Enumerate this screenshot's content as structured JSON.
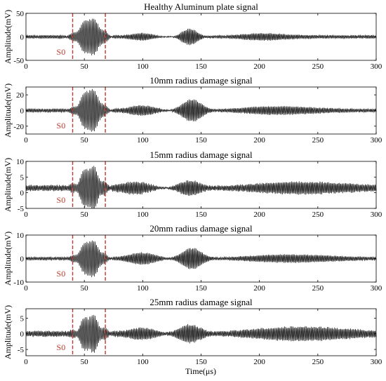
{
  "figure": {
    "xlabel": "Time(μs)"
  },
  "chart_data": [
    {
      "type": "line",
      "title": "Healthy Aluminum plate signal",
      "xlabel": "Time(μs)",
      "ylabel": "Amplitude(mV)",
      "xlim": [
        0,
        300
      ],
      "ylim": [
        -50,
        50
      ],
      "xticks": [
        0,
        50,
        100,
        150,
        200,
        250,
        300
      ],
      "yticks": [
        -50,
        0,
        50
      ],
      "markers": [
        40,
        68
      ],
      "marker_label": "S0",
      "marker_color": "#c0392b",
      "series": [
        {
          "noise": 3,
          "packets": [
            {
              "center": 55,
              "width": 11,
              "amp": 40,
              "freq": 0.16
            },
            {
              "center": 100,
              "width": 16,
              "amp": 10,
              "freq": 0.18
            },
            {
              "center": 140,
              "width": 10,
              "amp": 20,
              "freq": 0.18
            },
            {
              "center": 200,
              "width": 25,
              "amp": 6,
              "freq": 0.18
            }
          ]
        }
      ]
    },
    {
      "type": "line",
      "title": "10mm radius damage signal",
      "xlabel": "",
      "ylabel": "Amplitude(mV)",
      "xlim": [
        0,
        300
      ],
      "ylim": [
        -30,
        30
      ],
      "xticks": [
        0,
        50,
        100,
        150,
        200,
        250,
        300
      ],
      "yticks": [
        -20,
        0,
        20
      ],
      "markers": [
        40,
        68
      ],
      "marker_label": "S0",
      "marker_color": "#c0392b",
      "series": [
        {
          "noise": 2,
          "packets": [
            {
              "center": 55,
              "width": 10,
              "amp": 28,
              "freq": 0.16
            },
            {
              "center": 100,
              "width": 18,
              "amp": 8,
              "freq": 0.18
            },
            {
              "center": 142,
              "width": 12,
              "amp": 16,
              "freq": 0.18
            },
            {
              "center": 210,
              "width": 40,
              "amp": 4,
              "freq": 0.18
            }
          ]
        }
      ]
    },
    {
      "type": "line",
      "title": "15mm radius damage signal",
      "xlabel": "",
      "ylabel": "Amplitude(mV)",
      "xlim": [
        0,
        300
      ],
      "ylim": [
        -5,
        10
      ],
      "xticks": [
        0,
        50,
        100,
        150,
        200,
        250,
        300
      ],
      "yticks": [
        -5,
        0,
        5,
        10
      ],
      "markers": [
        40,
        68
      ],
      "marker_label": "S0",
      "marker_color": "#c0392b",
      "series": [
        {
          "offset": 1.5,
          "noise": 0.8,
          "packets": [
            {
              "center": 55,
              "width": 10,
              "amp": 7,
              "freq": 0.16
            },
            {
              "center": 95,
              "width": 20,
              "amp": 2.5,
              "freq": 0.18
            },
            {
              "center": 140,
              "width": 14,
              "amp": 3,
              "freq": 0.18
            },
            {
              "center": 230,
              "width": 60,
              "amp": 1.2,
              "freq": 0.18
            }
          ]
        }
      ]
    },
    {
      "type": "line",
      "title": "20mm radius damage signal",
      "xlabel": "",
      "ylabel": "Amplitude(mV)",
      "xlim": [
        0,
        300
      ],
      "ylim": [
        -10,
        10
      ],
      "xticks": [
        0,
        50,
        100,
        150,
        200,
        250,
        300
      ],
      "yticks": [
        -10,
        0,
        10
      ],
      "markers": [
        40,
        68
      ],
      "marker_label": "S0",
      "marker_color": "#c0392b",
      "series": [
        {
          "noise": 0.6,
          "packets": [
            {
              "center": 55,
              "width": 10,
              "amp": 8,
              "freq": 0.16
            },
            {
              "center": 100,
              "width": 18,
              "amp": 3,
              "freq": 0.18
            },
            {
              "center": 142,
              "width": 12,
              "amp": 5,
              "freq": 0.18
            },
            {
              "center": 220,
              "width": 50,
              "amp": 1.2,
              "freq": 0.18
            }
          ]
        }
      ]
    },
    {
      "type": "line",
      "title": "25mm radius damage signal",
      "xlabel": "Time(μs)",
      "ylabel": "Amplitude(mV)",
      "xlim": [
        0,
        300
      ],
      "ylim": [
        -7,
        8
      ],
      "xticks": [
        0,
        50,
        100,
        150,
        200,
        250,
        300
      ],
      "yticks": [
        -5,
        0,
        5
      ],
      "markers": [
        40,
        68
      ],
      "marker_label": "S0",
      "marker_color": "#c0392b",
      "series": [
        {
          "noise": 0.8,
          "packets": [
            {
              "center": 55,
              "width": 10,
              "amp": 6,
              "freq": 0.16
            },
            {
              "center": 100,
              "width": 18,
              "amp": 2.5,
              "freq": 0.18
            },
            {
              "center": 140,
              "width": 14,
              "amp": 3.5,
              "freq": 0.18
            },
            {
              "center": 230,
              "width": 60,
              "amp": 1.5,
              "freq": 0.18
            }
          ]
        }
      ]
    }
  ]
}
